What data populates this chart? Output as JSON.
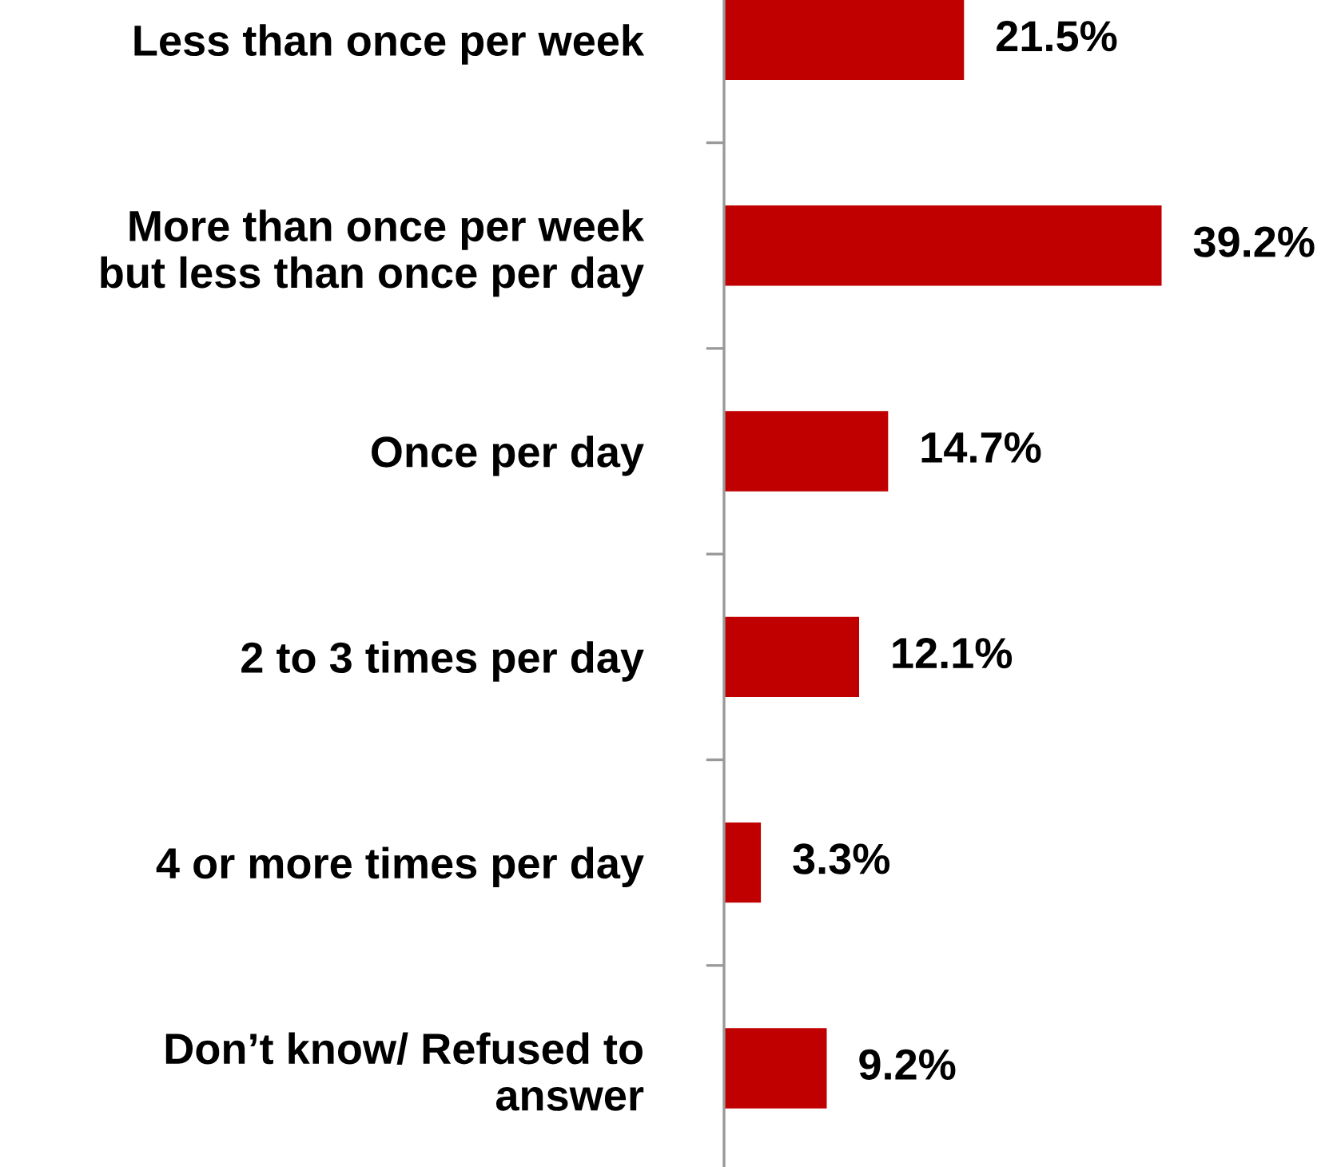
{
  "chart_data": {
    "type": "bar",
    "orientation": "horizontal",
    "categories": [
      "Less than once per week",
      "More than once per week\nbut less than once per day",
      "Once per day",
      "2 to 3 times per day",
      "4 or more times per day",
      "Don’t know/ Refused to\nanswer"
    ],
    "values": [
      21.5,
      39.2,
      14.7,
      12.1,
      3.3,
      9.2
    ],
    "value_labels": [
      "21.5%",
      "39.2%",
      "14.7%",
      "12.1%",
      "3.3%",
      "9.2%"
    ],
    "color": "#c00000",
    "grid": false,
    "legend": false
  }
}
